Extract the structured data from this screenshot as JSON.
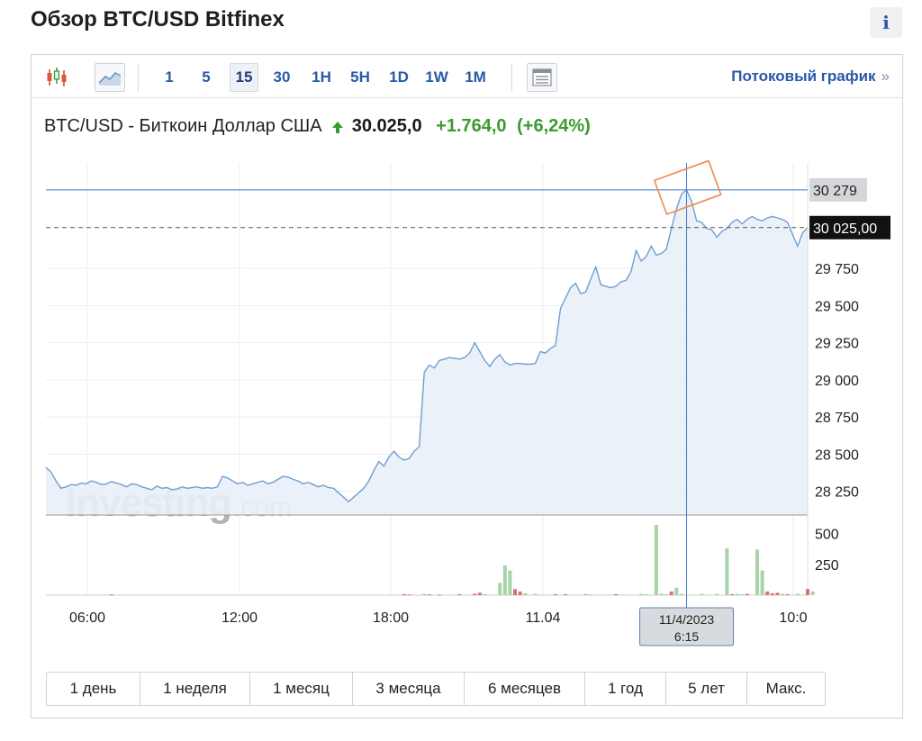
{
  "page": {
    "title": "Обзор BTC/USD Bitfinex",
    "info_label": "i"
  },
  "toolbar": {
    "periods": [
      "1",
      "5",
      "15",
      "30",
      "1H",
      "5H",
      "1D",
      "1W",
      "1M"
    ],
    "active_period": "15",
    "stream_link": "Потоковый график",
    "stream_arrow": "»",
    "icons": [
      "candlestick-icon",
      "area-chart-icon",
      "table-view-icon"
    ]
  },
  "quote": {
    "name": "BTC/USD - Биткоин Доллар США",
    "price": "30.025,0",
    "change": "+1.764,0",
    "change_pct": "(+6,24%)",
    "direction": "up"
  },
  "chart_data": {
    "type": "area",
    "x_tick_labels": [
      "06:00",
      "12:00",
      "18:00",
      "11.04",
      "10:0"
    ],
    "y_tick_labels": [
      "29 750",
      "29 500",
      "29 250",
      "29 000",
      "28 750",
      "28 500",
      "28 250"
    ],
    "ylim": [
      28090,
      30460
    ],
    "price_values": [
      28410,
      28380,
      28320,
      28270,
      28280,
      28295,
      28290,
      28305,
      28300,
      28320,
      28310,
      28295,
      28300,
      28315,
      28305,
      28295,
      28280,
      28300,
      28295,
      28280,
      28270,
      28260,
      28285,
      28270,
      28275,
      28260,
      28265,
      28280,
      28270,
      28275,
      28280,
      28270,
      28275,
      28270,
      28280,
      28350,
      28340,
      28320,
      28300,
      28310,
      28290,
      28300,
      28310,
      28320,
      28300,
      28310,
      28330,
      28350,
      28345,
      28330,
      28320,
      28300,
      28310,
      28295,
      28280,
      28290,
      28275,
      28270,
      28240,
      28210,
      28180,
      28210,
      28240,
      28270,
      28320,
      28390,
      28450,
      28420,
      28480,
      28520,
      28480,
      28460,
      28470,
      28520,
      28550,
      29050,
      29100,
      29080,
      29130,
      29140,
      29150,
      29145,
      29140,
      29150,
      29180,
      29250,
      29190,
      29130,
      29090,
      29140,
      29170,
      29120,
      29100,
      29110,
      29110,
      29105,
      29105,
      29110,
      29190,
      29180,
      29210,
      29230,
      29480,
      29550,
      29620,
      29650,
      29580,
      29590,
      29680,
      29760,
      29640,
      29630,
      29620,
      29630,
      29660,
      29670,
      29730,
      29870,
      29800,
      29830,
      29900,
      29840,
      29850,
      29880,
      30020,
      30150,
      30250,
      30279,
      30200,
      30070,
      30060,
      30020,
      30010,
      29960,
      30000,
      30020,
      30060,
      30080,
      30050,
      30080,
      30100,
      30080,
      30070,
      30090,
      30100,
      30090,
      30080,
      30060,
      29980,
      29900,
      29990,
      30025
    ],
    "volume_values": [
      5,
      0,
      0,
      0,
      0,
      0,
      0,
      0,
      0,
      0,
      0,
      0,
      0,
      0,
      0,
      0,
      0,
      0,
      0,
      0,
      0,
      0,
      0,
      0,
      0,
      0,
      0,
      0,
      0,
      0,
      0,
      0,
      0,
      0,
      0,
      0,
      0,
      0,
      0,
      0,
      0,
      0,
      0,
      0,
      0,
      0,
      0,
      0,
      0,
      0,
      0,
      0,
      0,
      0,
      0,
      0,
      0,
      0,
      0,
      0,
      0,
      0,
      0,
      0,
      0,
      0,
      0,
      0,
      0,
      0,
      0,
      0,
      0,
      0,
      0,
      0,
      0,
      0,
      0,
      0,
      0,
      0,
      0,
      0,
      0,
      0,
      0,
      0,
      0,
      0,
      0,
      0,
      0,
      0,
      0,
      0,
      0,
      0,
      0,
      0,
      0,
      0,
      0,
      0,
      0,
      0,
      0,
      0,
      0,
      0,
      0,
      0,
      0,
      0,
      0,
      0,
      0,
      0,
      0,
      0,
      0,
      0,
      0,
      0,
      0,
      0,
      0,
      0,
      0,
      0,
      0,
      0,
      0,
      0,
      0,
      0,
      0,
      0,
      0,
      0,
      0,
      0,
      0,
      0,
      0,
      0,
      0,
      0,
      0,
      0,
      0,
      0,
      0,
      0
    ],
    "volume_bars": [
      {
        "i": 13,
        "v": 6,
        "c": "down"
      },
      {
        "i": 71,
        "v": 8,
        "c": "down"
      },
      {
        "i": 72,
        "v": 5,
        "c": "down"
      },
      {
        "i": 75,
        "v": 10,
        "c": "up"
      },
      {
        "i": 76,
        "v": 6,
        "c": "down"
      },
      {
        "i": 78,
        "v": 4,
        "c": "down"
      },
      {
        "i": 82,
        "v": 8,
        "c": "down"
      },
      {
        "i": 85,
        "v": 12,
        "c": "down"
      },
      {
        "i": 86,
        "v": 20,
        "c": "down"
      },
      {
        "i": 87,
        "v": 8,
        "c": "up"
      },
      {
        "i": 90,
        "v": 100,
        "c": "up"
      },
      {
        "i": 91,
        "v": 240,
        "c": "up"
      },
      {
        "i": 92,
        "v": 200,
        "c": "up"
      },
      {
        "i": 93,
        "v": 50,
        "c": "down"
      },
      {
        "i": 94,
        "v": 30,
        "c": "down"
      },
      {
        "i": 95,
        "v": 15,
        "c": "up"
      },
      {
        "i": 97,
        "v": 10,
        "c": "up"
      },
      {
        "i": 101,
        "v": 8,
        "c": "down"
      },
      {
        "i": 103,
        "v": 8,
        "c": "down"
      },
      {
        "i": 107,
        "v": 12,
        "c": "up"
      },
      {
        "i": 108,
        "v": 6,
        "c": "up"
      },
      {
        "i": 113,
        "v": 8,
        "c": "down"
      },
      {
        "i": 118,
        "v": 10,
        "c": "up"
      },
      {
        "i": 119,
        "v": 8,
        "c": "up"
      },
      {
        "i": 121,
        "v": 570,
        "c": "up"
      },
      {
        "i": 122,
        "v": 12,
        "c": "up"
      },
      {
        "i": 123,
        "v": 8,
        "c": "up"
      },
      {
        "i": 124,
        "v": 30,
        "c": "down"
      },
      {
        "i": 125,
        "v": 60,
        "c": "up"
      },
      {
        "i": 126,
        "v": 10,
        "c": "up"
      },
      {
        "i": 130,
        "v": 10,
        "c": "up"
      },
      {
        "i": 133,
        "v": 10,
        "c": "up"
      },
      {
        "i": 135,
        "v": 380,
        "c": "up"
      },
      {
        "i": 136,
        "v": 8,
        "c": "down"
      },
      {
        "i": 137,
        "v": 10,
        "c": "up"
      },
      {
        "i": 138,
        "v": 8,
        "c": "up"
      },
      {
        "i": 139,
        "v": 10,
        "c": "down"
      },
      {
        "i": 141,
        "v": 370,
        "c": "up"
      },
      {
        "i": 142,
        "v": 200,
        "c": "up"
      },
      {
        "i": 143,
        "v": 30,
        "c": "down"
      },
      {
        "i": 144,
        "v": 15,
        "c": "down"
      },
      {
        "i": 145,
        "v": 20,
        "c": "down"
      },
      {
        "i": 146,
        "v": 10,
        "c": "up"
      },
      {
        "i": 147,
        "v": 8,
        "c": "down"
      },
      {
        "i": 149,
        "v": 12,
        "c": "up"
      },
      {
        "i": 151,
        "v": 50,
        "c": "down"
      },
      {
        "i": 152,
        "v": 30,
        "c": "up"
      }
    ],
    "volume_tick_labels": [
      "500",
      "250"
    ],
    "volume_ylim": [
      0,
      650
    ],
    "crosshair": {
      "price_label": "30 279",
      "date_label": "11/4/2023",
      "time_label": "6:15"
    },
    "last_price_label": "30 025,00",
    "watermark": "Investing",
    "watermark_suffix": ".com",
    "colors": {
      "line": "#6f9fd0",
      "fill": "#e9eff7",
      "vol_up": "#a7d3a8",
      "vol_down": "#d97272",
      "crosshair": "#3f78c9",
      "highlight": "#f08a4b"
    }
  },
  "range_buttons": [
    "1 день",
    "1 неделя",
    "1 месяц",
    "3 месяца",
    "6 месяцев",
    "1 год",
    "5 лет",
    "Макс."
  ]
}
